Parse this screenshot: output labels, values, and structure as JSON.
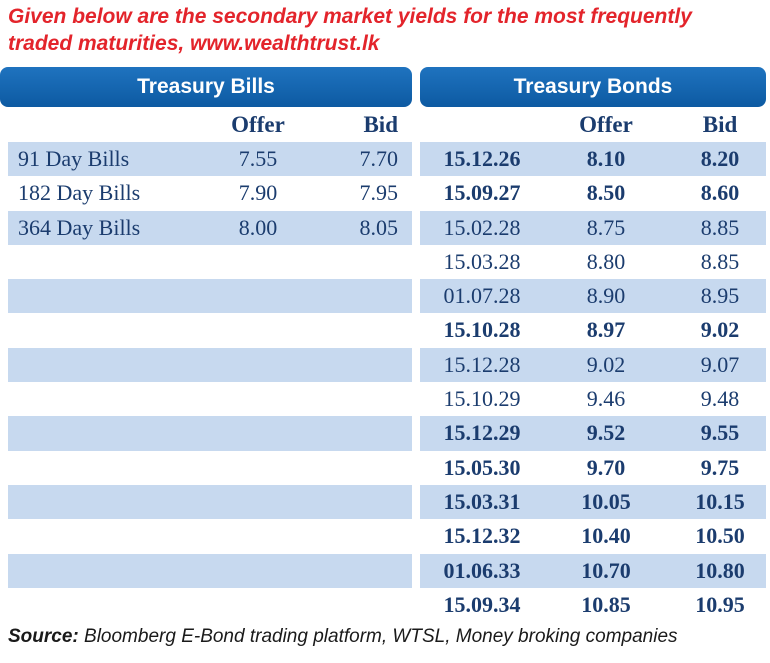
{
  "headline": "Given below are the secondary market yields for the most frequently traded maturities, www.wealthtrust.lk",
  "bills": {
    "title": "Treasury Bills",
    "offer_header": "Offer",
    "bid_header": "Bid",
    "rows": [
      {
        "name": "91 Day Bills",
        "offer": "7.55",
        "bid": "7.70"
      },
      {
        "name": "182 Day Bills",
        "offer": "7.90",
        "bid": "7.95"
      },
      {
        "name": "364 Day Bills",
        "offer": "8.00",
        "bid": "8.05"
      }
    ]
  },
  "bonds": {
    "title": "Treasury Bonds",
    "offer_header": "Offer",
    "bid_header": "Bid",
    "rows": [
      {
        "maturity": "15.12.26",
        "offer": "8.10",
        "bid": "8.20",
        "bold": true
      },
      {
        "maturity": "15.09.27",
        "offer": "8.50",
        "bid": "8.60",
        "bold": true
      },
      {
        "maturity": "15.02.28",
        "offer": "8.75",
        "bid": "8.85",
        "bold": false
      },
      {
        "maturity": "15.03.28",
        "offer": "8.80",
        "bid": "8.85",
        "bold": false
      },
      {
        "maturity": "01.07.28",
        "offer": "8.90",
        "bid": "8.95",
        "bold": false
      },
      {
        "maturity": "15.10.28",
        "offer": "8.97",
        "bid": "9.02",
        "bold": true
      },
      {
        "maturity": "15.12.28",
        "offer": "9.02",
        "bid": "9.07",
        "bold": false
      },
      {
        "maturity": "15.10.29",
        "offer": "9.46",
        "bid": "9.48",
        "bold": false
      },
      {
        "maturity": "15.12.29",
        "offer": "9.52",
        "bid": "9.55",
        "bold": true
      },
      {
        "maturity": "15.05.30",
        "offer": "9.70",
        "bid": "9.75",
        "bold": true
      },
      {
        "maturity": "15.03.31",
        "offer": "10.05",
        "bid": "10.15",
        "bold": true
      },
      {
        "maturity": "15.12.32",
        "offer": "10.40",
        "bid": "10.50",
        "bold": true
      },
      {
        "maturity": "01.06.33",
        "offer": "10.70",
        "bid": "10.80",
        "bold": true
      },
      {
        "maturity": "15.09.34",
        "offer": "10.85",
        "bid": "10.95",
        "bold": true
      }
    ]
  },
  "source": {
    "label": "Source:",
    "text": "Bloomberg E-Bond trading platform, WTSL, Money broking companies"
  },
  "colors": {
    "headline": "#e3242b",
    "tab": "#0d5aa2",
    "shaded_row": "#c7d9ef",
    "text": "#1b3c6e"
  }
}
